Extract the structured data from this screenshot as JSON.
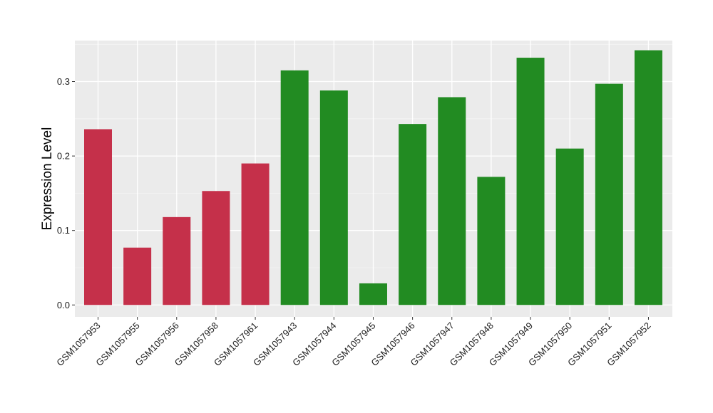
{
  "chart_data": {
    "type": "bar",
    "ylabel": "Expression Level",
    "xlabel": "",
    "ylim": [
      -0.016,
      0.355
    ],
    "yticks": [
      0.0,
      0.1,
      0.2,
      0.3
    ],
    "ytick_labels": [
      "0.0",
      "0.1",
      "0.2",
      "0.3"
    ],
    "grid": true,
    "background": "#EBEBEB",
    "categories": [
      "GSM1057953",
      "GSM1057955",
      "GSM1057956",
      "GSM1057958",
      "GSM1057961",
      "GSM1057943",
      "GSM1057944",
      "GSM1057945",
      "GSM1057946",
      "GSM1057947",
      "GSM1057948",
      "GSM1057949",
      "GSM1057950",
      "GSM1057951",
      "GSM1057952"
    ],
    "values": [
      0.236,
      0.077,
      0.118,
      0.153,
      0.19,
      0.315,
      0.288,
      0.029,
      0.243,
      0.279,
      0.172,
      0.332,
      0.21,
      0.297,
      0.342
    ],
    "bar_colors": [
      "#C5304A",
      "#C5304A",
      "#C5304A",
      "#C5304A",
      "#C5304A",
      "#228B22",
      "#228B22",
      "#228B22",
      "#228B22",
      "#228B22",
      "#228B22",
      "#228B22",
      "#228B22",
      "#228B22",
      "#228B22"
    ]
  }
}
